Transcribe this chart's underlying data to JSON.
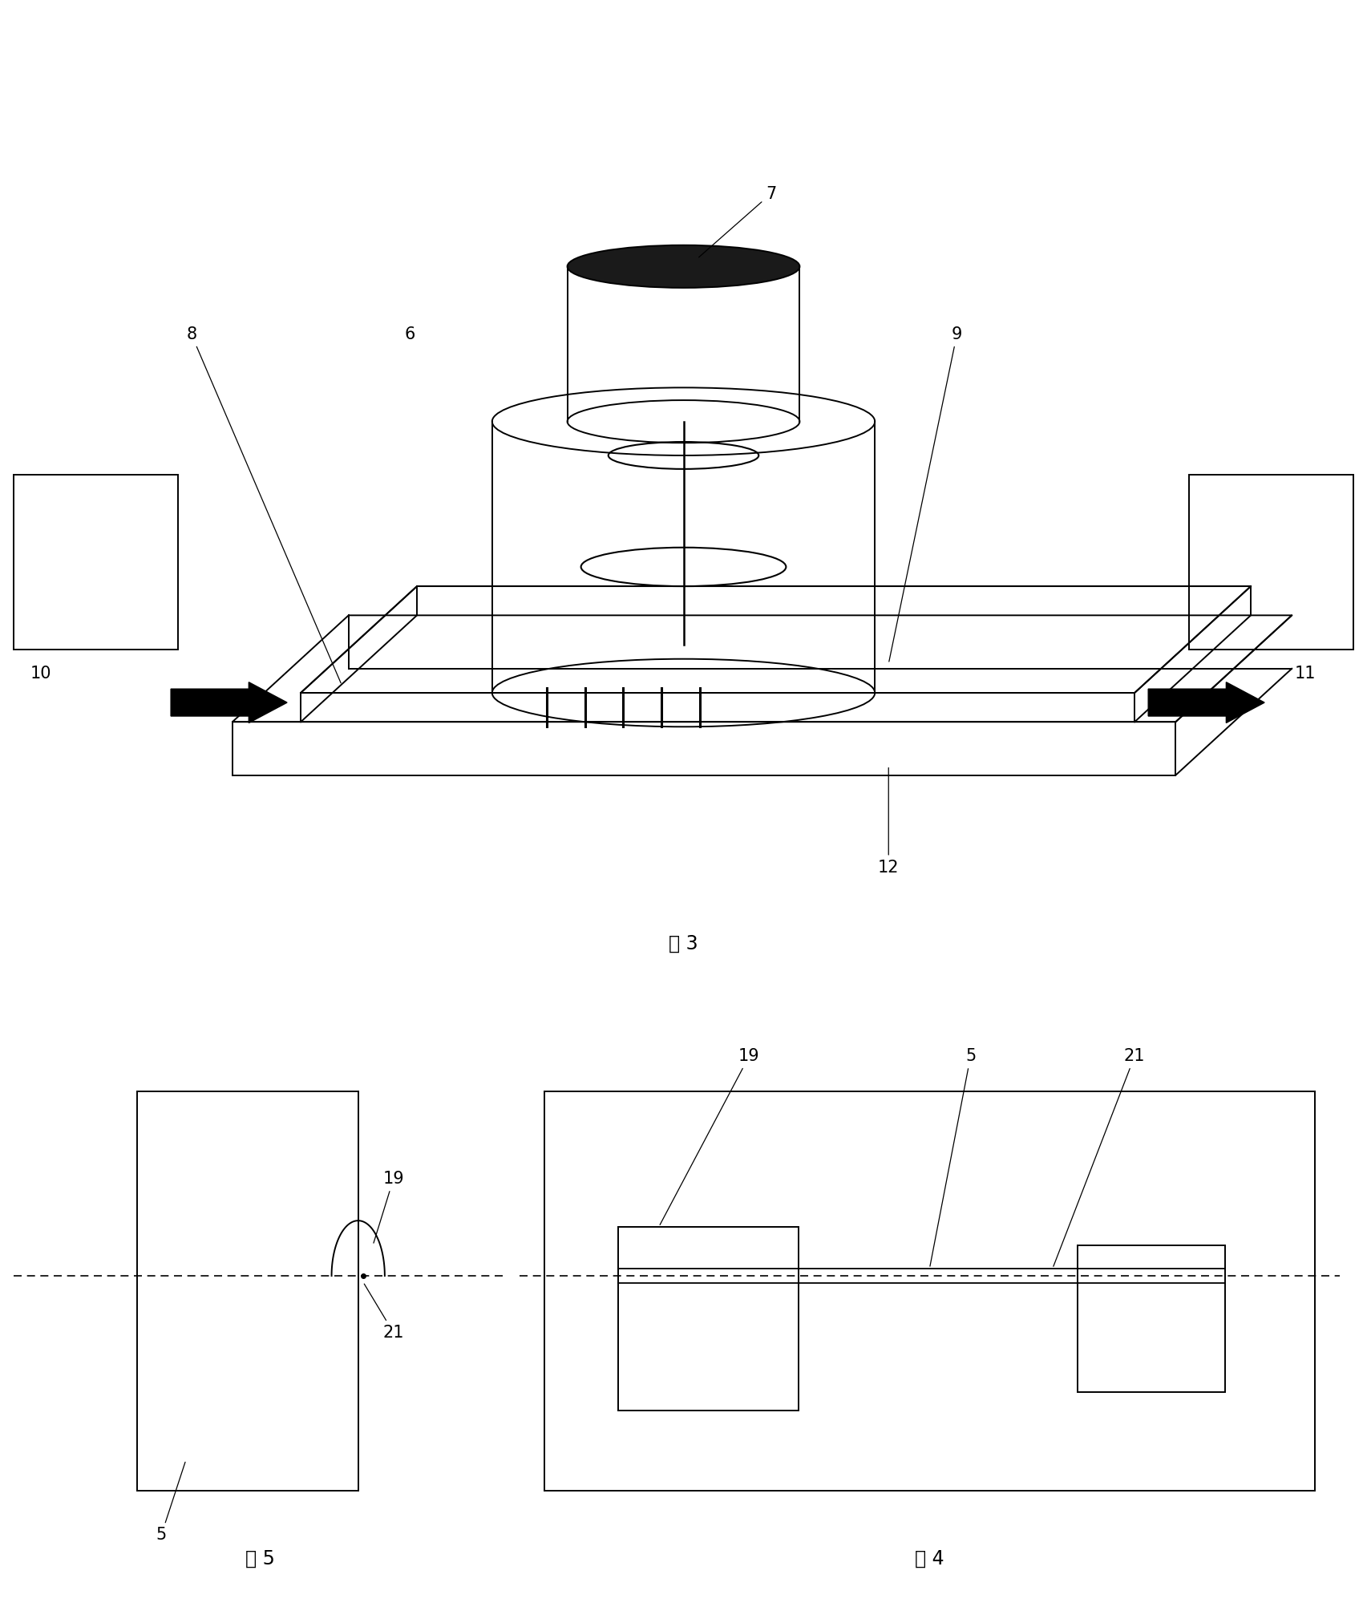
{
  "fig3_title": "图 3",
  "fig4_title": "图 4",
  "fig5_title": "图 5",
  "line_color": "#000000",
  "bg_color": "#ffffff",
  "font_size": 14
}
